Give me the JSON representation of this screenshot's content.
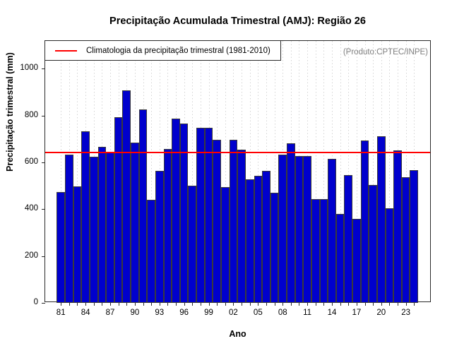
{
  "title": "Precipitação Acumulada Trimestral (AMJ): Região 26",
  "annotation": "(Produto:CPTEC/INPE)",
  "legend": {
    "label": "Climatologia da precipitação trimestral (1981-2010)"
  },
  "chart_data": {
    "type": "bar",
    "title": "Precipitação Acumulada Trimestral (AMJ): Região 26",
    "xlabel": "Ano",
    "ylabel": "Precipitação trimestral (mm)",
    "ylim": [
      0,
      1000
    ],
    "yticks": [
      0,
      200,
      400,
      600,
      800,
      1000
    ],
    "x_tick_labels_shown": [
      "81",
      "84",
      "87",
      "90",
      "93",
      "96",
      "99",
      "02",
      "05",
      "08",
      "11",
      "14",
      "17",
      "20",
      "23"
    ],
    "x_label_every": 3,
    "grid": "dotted-vertical",
    "legend_position": "top-left",
    "bar_color": "#0000cd",
    "categories": [
      1981,
      1982,
      1983,
      1984,
      1985,
      1986,
      1987,
      1988,
      1989,
      1990,
      1991,
      1992,
      1993,
      1994,
      1995,
      1996,
      1997,
      1998,
      1999,
      2000,
      2001,
      2002,
      2003,
      2004,
      2005,
      2006,
      2007,
      2008,
      2009,
      2010,
      2011,
      2012,
      2013,
      2014,
      2015,
      2016,
      2017,
      2018,
      2019,
      2020,
      2021,
      2022,
      2023,
      2024
    ],
    "values": [
      474,
      633,
      498,
      731,
      625,
      665,
      645,
      794,
      908,
      685,
      826,
      439,
      563,
      657,
      786,
      766,
      500,
      747,
      749,
      697,
      494,
      695,
      655,
      528,
      543,
      563,
      469,
      633,
      682,
      626,
      628,
      444,
      442,
      615,
      379,
      546,
      360,
      692,
      503,
      712,
      404,
      652,
      538,
      568
    ],
    "climatology_line": {
      "value": 643,
      "color": "#ff0000",
      "label": "Climatologia da precipitação trimestral (1981-2010)",
      "period": "1981-2010"
    }
  }
}
